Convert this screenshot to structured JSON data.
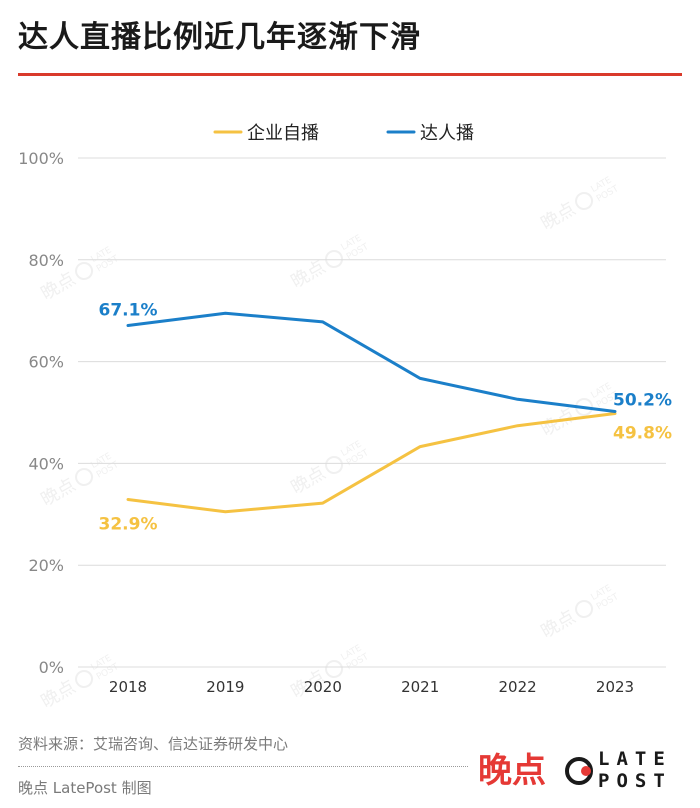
{
  "header": {
    "title": "达人直播比例近几年逐渐下滑"
  },
  "footer": {
    "source": "资料来源：艾瑞咨询、信达证券研发中心",
    "credit": "晚点 LatePost 制图"
  },
  "brand": {
    "cn_name": "晚点",
    "en_line1": "LATE",
    "en_line2": "POST",
    "logo_icon": "late-post-logo-icon",
    "accent_color": "#e53935"
  },
  "watermark": {
    "cn": "晚点",
    "en1": "LATE",
    "en2": "POST"
  },
  "chart_data": {
    "type": "line",
    "title": "达人直播比例近几年逐渐下滑",
    "xlabel": "",
    "ylabel": "",
    "ylim": [
      0,
      100
    ],
    "y_ticks": [
      "0%",
      "20%",
      "40%",
      "60%",
      "80%",
      "100%"
    ],
    "y_tick_values": [
      0,
      20,
      40,
      60,
      80,
      100
    ],
    "categories": [
      "2018",
      "2019",
      "2020",
      "2021",
      "2022",
      "2023"
    ],
    "grid": true,
    "legend_position": "top-center",
    "series": [
      {
        "name": "企业自播",
        "color": "#f5c242",
        "values": [
          32.9,
          30.5,
          32.2,
          43.3,
          47.4,
          49.8
        ],
        "annotations": [
          {
            "index": 0,
            "text": "32.9%"
          },
          {
            "index": 5,
            "text": "49.8%"
          }
        ]
      },
      {
        "name": "达人播",
        "color": "#1b7fc9",
        "values": [
          67.1,
          69.5,
          67.8,
          56.7,
          52.6,
          50.2
        ],
        "annotations": [
          {
            "index": 0,
            "text": "67.1%"
          },
          {
            "index": 5,
            "text": "50.2%"
          }
        ]
      }
    ]
  }
}
